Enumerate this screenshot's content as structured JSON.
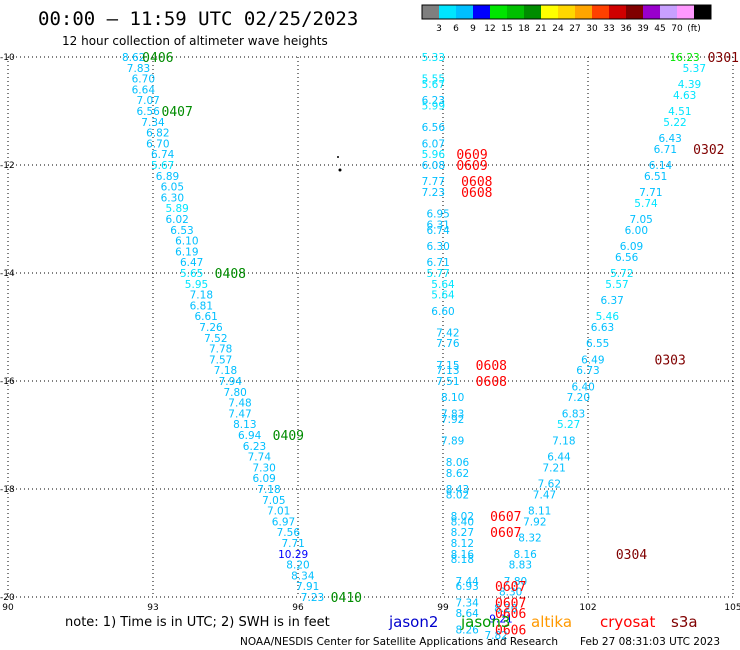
{
  "header": {
    "title": "00:00 – 11:59 UTC 02/25/2023",
    "subtitle": "12 hour collection of altimeter wave heights"
  },
  "colorbar": {
    "labels": [
      "3",
      "6",
      "9",
      "12",
      "15",
      "18",
      "21",
      "24",
      "27",
      "30",
      "33",
      "36",
      "39",
      "45",
      "70",
      "(ft)"
    ],
    "colors": [
      "#7f7f7f",
      "#00e5ff",
      "#00bfff",
      "#0000ff",
      "#00e600",
      "#00c000",
      "#008c00",
      "#ffff00",
      "#ffd700",
      "#ffa500",
      "#ff4000",
      "#d00000",
      "#800000",
      "#9900cc",
      "#c8a0ff",
      "#ff99ff",
      "#000000"
    ]
  },
  "footer": {
    "note": "note: 1) Time is in UTC; 2) SWH is in feet",
    "missions": [
      {
        "name": "jason2",
        "color": "#0000cc"
      },
      {
        "name": "jason3",
        "color": "#009900"
      },
      {
        "name": "altika",
        "color": "#ff9900"
      },
      {
        "name": "cryosat",
        "color": "#ff0000"
      },
      {
        "name": "s3a",
        "color": "#800000"
      }
    ],
    "credit": "NOAA/NESDIS Center for Satellite Applications and Research",
    "timestamp": "Feb 27 08:31:03 UTC 2023"
  },
  "chart_data": {
    "type": "scatter",
    "xlim": [
      90,
      105
    ],
    "ylim": [
      -20,
      -10
    ],
    "x_ticks": [
      "90",
      "93",
      "96",
      "99",
      "102",
      "105"
    ],
    "y_ticks": [
      "-10",
      "-12",
      "-14",
      "-16",
      "-18",
      "-20"
    ],
    "grid": true,
    "swh_points": [
      {
        "x": 92.6,
        "y": -10.0,
        "v": "8.62",
        "c": "#00bfff"
      },
      {
        "x": 92.7,
        "y": -10.2,
        "v": "7.83",
        "c": "#00bfff"
      },
      {
        "x": 92.8,
        "y": -10.4,
        "v": "6.70",
        "c": "#00bfff"
      },
      {
        "x": 92.8,
        "y": -10.6,
        "v": "6.64",
        "c": "#00bfff"
      },
      {
        "x": 92.9,
        "y": -10.8,
        "v": "7.07",
        "c": "#00bfff"
      },
      {
        "x": 92.9,
        "y": -11.0,
        "v": "6.56",
        "c": "#00bfff"
      },
      {
        "x": 93.0,
        "y": -11.2,
        "v": "7.34",
        "c": "#00bfff"
      },
      {
        "x": 93.1,
        "y": -11.4,
        "v": "6.82",
        "c": "#00bfff"
      },
      {
        "x": 93.1,
        "y": -11.6,
        "v": "6.70",
        "c": "#00bfff"
      },
      {
        "x": 93.2,
        "y": -11.8,
        "v": "6.74",
        "c": "#00bfff"
      },
      {
        "x": 93.2,
        "y": -12.0,
        "v": "5.67",
        "c": "#00e5ff"
      },
      {
        "x": 93.3,
        "y": -12.2,
        "v": "6.89",
        "c": "#00bfff"
      },
      {
        "x": 93.4,
        "y": -12.4,
        "v": "6.05",
        "c": "#00bfff"
      },
      {
        "x": 93.4,
        "y": -12.6,
        "v": "6.30",
        "c": "#00bfff"
      },
      {
        "x": 93.5,
        "y": -12.8,
        "v": "5.89",
        "c": "#00e5ff"
      },
      {
        "x": 93.5,
        "y": -13.0,
        "v": "6.02",
        "c": "#00bfff"
      },
      {
        "x": 93.6,
        "y": -13.2,
        "v": "6.53",
        "c": "#00bfff"
      },
      {
        "x": 93.7,
        "y": -13.4,
        "v": "6.10",
        "c": "#00bfff"
      },
      {
        "x": 93.7,
        "y": -13.6,
        "v": "6.19",
        "c": "#00bfff"
      },
      {
        "x": 93.8,
        "y": -13.8,
        "v": "6.47",
        "c": "#00bfff"
      },
      {
        "x": 93.8,
        "y": -14.0,
        "v": "5.65",
        "c": "#00e5ff"
      },
      {
        "x": 93.9,
        "y": -14.2,
        "v": "5.95",
        "c": "#00e5ff"
      },
      {
        "x": 94.0,
        "y": -14.4,
        "v": "7.18",
        "c": "#00bfff"
      },
      {
        "x": 94.0,
        "y": -14.6,
        "v": "6.81",
        "c": "#00bfff"
      },
      {
        "x": 94.1,
        "y": -14.8,
        "v": "6.61",
        "c": "#00bfff"
      },
      {
        "x": 94.2,
        "y": -15.0,
        "v": "7.26",
        "c": "#00bfff"
      },
      {
        "x": 94.3,
        "y": -15.2,
        "v": "7.52",
        "c": "#00bfff"
      },
      {
        "x": 94.4,
        "y": -15.4,
        "v": "7.78",
        "c": "#00bfff"
      },
      {
        "x": 94.4,
        "y": -15.6,
        "v": "7.57",
        "c": "#00bfff"
      },
      {
        "x": 94.5,
        "y": -15.8,
        "v": "7.18",
        "c": "#00bfff"
      },
      {
        "x": 94.6,
        "y": -16.0,
        "v": "7.94",
        "c": "#00bfff"
      },
      {
        "x": 94.7,
        "y": -16.2,
        "v": "7.80",
        "c": "#00bfff"
      },
      {
        "x": 94.8,
        "y": -16.4,
        "v": "7.48",
        "c": "#00bfff"
      },
      {
        "x": 94.8,
        "y": -16.6,
        "v": "7.47",
        "c": "#00bfff"
      },
      {
        "x": 94.9,
        "y": -16.8,
        "v": "8.13",
        "c": "#00bfff"
      },
      {
        "x": 95.0,
        "y": -17.0,
        "v": "6.94",
        "c": "#00bfff"
      },
      {
        "x": 95.1,
        "y": -17.2,
        "v": "6.23",
        "c": "#00bfff"
      },
      {
        "x": 95.2,
        "y": -17.4,
        "v": "7.74",
        "c": "#00bfff"
      },
      {
        "x": 95.3,
        "y": -17.6,
        "v": "7.30",
        "c": "#00bfff"
      },
      {
        "x": 95.3,
        "y": -17.8,
        "v": "6.09",
        "c": "#00bfff"
      },
      {
        "x": 95.4,
        "y": -18.0,
        "v": "7.18",
        "c": "#00bfff"
      },
      {
        "x": 95.5,
        "y": -18.2,
        "v": "7.05",
        "c": "#00bfff"
      },
      {
        "x": 95.6,
        "y": -18.4,
        "v": "7.01",
        "c": "#00bfff"
      },
      {
        "x": 95.7,
        "y": -18.6,
        "v": "6.97",
        "c": "#00bfff"
      },
      {
        "x": 95.8,
        "y": -18.8,
        "v": "7.56",
        "c": "#00bfff"
      },
      {
        "x": 95.9,
        "y": -19.0,
        "v": "7.71",
        "c": "#00bfff"
      },
      {
        "x": 95.9,
        "y": -19.2,
        "v": "10.29",
        "c": "#0000ff"
      },
      {
        "x": 96.0,
        "y": -19.4,
        "v": "8.20",
        "c": "#00bfff"
      },
      {
        "x": 96.1,
        "y": -19.6,
        "v": "8.34",
        "c": "#00bfff"
      },
      {
        "x": 96.2,
        "y": -19.8,
        "v": "7.91",
        "c": "#00bfff"
      },
      {
        "x": 96.3,
        "y": -20.0,
        "v": "7.23",
        "c": "#00bfff"
      },
      {
        "x": 98.8,
        "y": -10.0,
        "v": "5.33",
        "c": "#00e5ff"
      },
      {
        "x": 98.8,
        "y": -10.4,
        "v": "5.55",
        "c": "#00e5ff"
      },
      {
        "x": 98.8,
        "y": -10.5,
        "v": "5.67",
        "c": "#00e5ff"
      },
      {
        "x": 98.8,
        "y": -10.8,
        "v": "6.23",
        "c": "#00bfff"
      },
      {
        "x": 98.8,
        "y": -10.9,
        "v": "5.99",
        "c": "#00e5ff"
      },
      {
        "x": 98.8,
        "y": -11.3,
        "v": "6.56",
        "c": "#00bfff"
      },
      {
        "x": 98.8,
        "y": -11.6,
        "v": "6.07",
        "c": "#00bfff"
      },
      {
        "x": 98.8,
        "y": -11.8,
        "v": "5.96",
        "c": "#00e5ff"
      },
      {
        "x": 98.8,
        "y": -12.0,
        "v": "6.08",
        "c": "#00bfff"
      },
      {
        "x": 98.8,
        "y": -12.3,
        "v": "7.77",
        "c": "#00bfff"
      },
      {
        "x": 98.8,
        "y": -12.5,
        "v": "7.23",
        "c": "#00bfff"
      },
      {
        "x": 98.9,
        "y": -12.9,
        "v": "6.95",
        "c": "#00bfff"
      },
      {
        "x": 98.9,
        "y": -13.1,
        "v": "6.31",
        "c": "#00bfff"
      },
      {
        "x": 98.9,
        "y": -13.2,
        "v": "6.74",
        "c": "#00bfff"
      },
      {
        "x": 98.9,
        "y": -13.5,
        "v": "6.30",
        "c": "#00bfff"
      },
      {
        "x": 98.9,
        "y": -13.8,
        "v": "6.71",
        "c": "#00bfff"
      },
      {
        "x": 98.9,
        "y": -14.0,
        "v": "5.77",
        "c": "#00e5ff"
      },
      {
        "x": 99.0,
        "y": -14.2,
        "v": "5.64",
        "c": "#00e5ff"
      },
      {
        "x": 99.0,
        "y": -14.4,
        "v": "5.64",
        "c": "#00e5ff"
      },
      {
        "x": 99.0,
        "y": -14.7,
        "v": "6.60",
        "c": "#00bfff"
      },
      {
        "x": 99.1,
        "y": -15.1,
        "v": "7.42",
        "c": "#00bfff"
      },
      {
        "x": 99.1,
        "y": -15.3,
        "v": "7.76",
        "c": "#00bfff"
      },
      {
        "x": 99.1,
        "y": -15.7,
        "v": "7.15",
        "c": "#00bfff"
      },
      {
        "x": 99.1,
        "y": -15.8,
        "v": "7.13",
        "c": "#00bfff"
      },
      {
        "x": 99.1,
        "y": -16.0,
        "v": "7.51",
        "c": "#00bfff"
      },
      {
        "x": 99.2,
        "y": -16.3,
        "v": "8.10",
        "c": "#00bfff"
      },
      {
        "x": 99.2,
        "y": -16.6,
        "v": "7.83",
        "c": "#00bfff"
      },
      {
        "x": 99.2,
        "y": -16.7,
        "v": "7.92",
        "c": "#00bfff"
      },
      {
        "x": 99.2,
        "y": -17.1,
        "v": "7.89",
        "c": "#00bfff"
      },
      {
        "x": 99.3,
        "y": -17.5,
        "v": "8.06",
        "c": "#00bfff"
      },
      {
        "x": 99.3,
        "y": -17.7,
        "v": "8.62",
        "c": "#00bfff"
      },
      {
        "x": 99.3,
        "y": -18.0,
        "v": "8.43",
        "c": "#00bfff"
      },
      {
        "x": 99.3,
        "y": -18.1,
        "v": "8.02",
        "c": "#00bfff"
      },
      {
        "x": 99.4,
        "y": -18.5,
        "v": "8.02",
        "c": "#00bfff"
      },
      {
        "x": 99.4,
        "y": -18.6,
        "v": "8.40",
        "c": "#00bfff"
      },
      {
        "x": 99.4,
        "y": -18.8,
        "v": "8.27",
        "c": "#00bfff"
      },
      {
        "x": 99.4,
        "y": -19.0,
        "v": "8.12",
        "c": "#00bfff"
      },
      {
        "x": 99.4,
        "y": -19.2,
        "v": "8.16",
        "c": "#00bfff"
      },
      {
        "x": 99.4,
        "y": -19.3,
        "v": "8.18",
        "c": "#00bfff"
      },
      {
        "x": 99.5,
        "y": -19.7,
        "v": "7.44",
        "c": "#00bfff"
      },
      {
        "x": 99.5,
        "y": -19.8,
        "v": "6.93",
        "c": "#00bfff"
      },
      {
        "x": 99.5,
        "y": -20.1,
        "v": "7.34",
        "c": "#00bfff"
      },
      {
        "x": 99.5,
        "y": -20.3,
        "v": "8.64",
        "c": "#00bfff"
      },
      {
        "x": 99.5,
        "y": -20.6,
        "v": "8.26",
        "c": "#00bfff"
      },
      {
        "x": 104.0,
        "y": -10.0,
        "v": "16.23",
        "c": "#00e600"
      },
      {
        "x": 104.2,
        "y": -10.2,
        "v": "5.37",
        "c": "#00e5ff"
      },
      {
        "x": 104.1,
        "y": -10.5,
        "v": "4.39",
        "c": "#00e5ff"
      },
      {
        "x": 104.0,
        "y": -10.7,
        "v": "4.63",
        "c": "#00e5ff"
      },
      {
        "x": 103.9,
        "y": -11.0,
        "v": "4.51",
        "c": "#00e5ff"
      },
      {
        "x": 103.8,
        "y": -11.2,
        "v": "5.22",
        "c": "#00e5ff"
      },
      {
        "x": 103.7,
        "y": -11.5,
        "v": "6.43",
        "c": "#00bfff"
      },
      {
        "x": 103.6,
        "y": -11.7,
        "v": "6.71",
        "c": "#00bfff"
      },
      {
        "x": 103.5,
        "y": -12.0,
        "v": "6.14",
        "c": "#00bfff"
      },
      {
        "x": 103.4,
        "y": -12.2,
        "v": "6.51",
        "c": "#00bfff"
      },
      {
        "x": 103.3,
        "y": -12.5,
        "v": "7.71",
        "c": "#00bfff"
      },
      {
        "x": 103.2,
        "y": -12.7,
        "v": "5.74",
        "c": "#00e5ff"
      },
      {
        "x": 103.1,
        "y": -13.0,
        "v": "7.05",
        "c": "#00bfff"
      },
      {
        "x": 103.0,
        "y": -13.2,
        "v": "6.00",
        "c": "#00bfff"
      },
      {
        "x": 102.9,
        "y": -13.5,
        "v": "6.09",
        "c": "#00bfff"
      },
      {
        "x": 102.8,
        "y": -13.7,
        "v": "6.56",
        "c": "#00bfff"
      },
      {
        "x": 102.7,
        "y": -14.0,
        "v": "5.72",
        "c": "#00e5ff"
      },
      {
        "x": 102.6,
        "y": -14.2,
        "v": "5.57",
        "c": "#00e5ff"
      },
      {
        "x": 102.5,
        "y": -14.5,
        "v": "6.37",
        "c": "#00bfff"
      },
      {
        "x": 102.4,
        "y": -14.8,
        "v": "5.46",
        "c": "#00e5ff"
      },
      {
        "x": 102.3,
        "y": -15.0,
        "v": "6.63",
        "c": "#00bfff"
      },
      {
        "x": 102.2,
        "y": -15.3,
        "v": "6.55",
        "c": "#00bfff"
      },
      {
        "x": 102.1,
        "y": -15.6,
        "v": "6.49",
        "c": "#00bfff"
      },
      {
        "x": 102.0,
        "y": -15.8,
        "v": "6.73",
        "c": "#00bfff"
      },
      {
        "x": 101.9,
        "y": -16.1,
        "v": "6.40",
        "c": "#00bfff"
      },
      {
        "x": 101.8,
        "y": -16.3,
        "v": "7.20",
        "c": "#00bfff"
      },
      {
        "x": 101.7,
        "y": -16.6,
        "v": "6.83",
        "c": "#00bfff"
      },
      {
        "x": 101.6,
        "y": -16.8,
        "v": "5.27",
        "c": "#00e5ff"
      },
      {
        "x": 101.5,
        "y": -17.1,
        "v": "7.18",
        "c": "#00bfff"
      },
      {
        "x": 101.4,
        "y": -17.4,
        "v": "6.44",
        "c": "#00bfff"
      },
      {
        "x": 101.3,
        "y": -17.6,
        "v": "7.21",
        "c": "#00bfff"
      },
      {
        "x": 101.2,
        "y": -17.9,
        "v": "7.62",
        "c": "#00bfff"
      },
      {
        "x": 101.1,
        "y": -18.1,
        "v": "7.47",
        "c": "#00bfff"
      },
      {
        "x": 101.0,
        "y": -18.4,
        "v": "8.11",
        "c": "#00bfff"
      },
      {
        "x": 100.9,
        "y": -18.6,
        "v": "7.92",
        "c": "#00bfff"
      },
      {
        "x": 100.8,
        "y": -18.9,
        "v": "8.32",
        "c": "#00bfff"
      },
      {
        "x": 100.7,
        "y": -19.2,
        "v": "8.16",
        "c": "#00bfff"
      },
      {
        "x": 100.6,
        "y": -19.4,
        "v": "8.83",
        "c": "#00bfff"
      },
      {
        "x": 100.5,
        "y": -19.7,
        "v": "7.80",
        "c": "#00bfff"
      },
      {
        "x": 100.4,
        "y": -19.9,
        "v": "8.30",
        "c": "#00bfff"
      },
      {
        "x": 100.3,
        "y": -20.2,
        "v": "8.20",
        "c": "#00bfff"
      },
      {
        "x": 100.2,
        "y": -20.4,
        "v": "9.21",
        "c": "#0000ff"
      },
      {
        "x": 100.1,
        "y": -20.7,
        "v": "7.82",
        "c": "#00bfff"
      }
    ],
    "time_labels": [
      {
        "x": 93.1,
        "y": -10.0,
        "v": "0406",
        "c": "#008c00"
      },
      {
        "x": 93.5,
        "y": -11.0,
        "v": "0407",
        "c": "#008c00"
      },
      {
        "x": 94.6,
        "y": -14.0,
        "v": "0408",
        "c": "#008c00"
      },
      {
        "x": 95.8,
        "y": -17.0,
        "v": "0409",
        "c": "#008c00"
      },
      {
        "x": 97.0,
        "y": -20.0,
        "v": "0410",
        "c": "#008c00"
      },
      {
        "x": 99.6,
        "y": -11.8,
        "v": "0609",
        "c": "#ff0000"
      },
      {
        "x": 99.6,
        "y": -12.0,
        "v": "0609",
        "c": "#ff0000"
      },
      {
        "x": 99.7,
        "y": -12.3,
        "v": "0608",
        "c": "#ff0000"
      },
      {
        "x": 99.7,
        "y": -12.5,
        "v": "0608",
        "c": "#ff0000"
      },
      {
        "x": 100.0,
        "y": -15.7,
        "v": "0608",
        "c": "#ff0000"
      },
      {
        "x": 100.0,
        "y": -16.0,
        "v": "0608",
        "c": "#ff0000"
      },
      {
        "x": 100.3,
        "y": -18.5,
        "v": "0607",
        "c": "#ff0000"
      },
      {
        "x": 100.3,
        "y": -18.8,
        "v": "0607",
        "c": "#ff0000"
      },
      {
        "x": 100.4,
        "y": -19.8,
        "v": "0607",
        "c": "#ff0000"
      },
      {
        "x": 100.4,
        "y": -20.1,
        "v": "0607",
        "c": "#ff0000"
      },
      {
        "x": 100.4,
        "y": -20.3,
        "v": "0606",
        "c": "#ff0000"
      },
      {
        "x": 100.4,
        "y": -20.6,
        "v": "0606",
        "c": "#ff0000"
      },
      {
        "x": 104.8,
        "y": -10.0,
        "v": "0301",
        "c": "#800000"
      },
      {
        "x": 104.5,
        "y": -11.7,
        "v": "0302",
        "c": "#800000"
      },
      {
        "x": 103.7,
        "y": -15.6,
        "v": "0303",
        "c": "#800000"
      },
      {
        "x": 102.9,
        "y": -19.2,
        "v": "0304",
        "c": "#800000"
      }
    ]
  }
}
